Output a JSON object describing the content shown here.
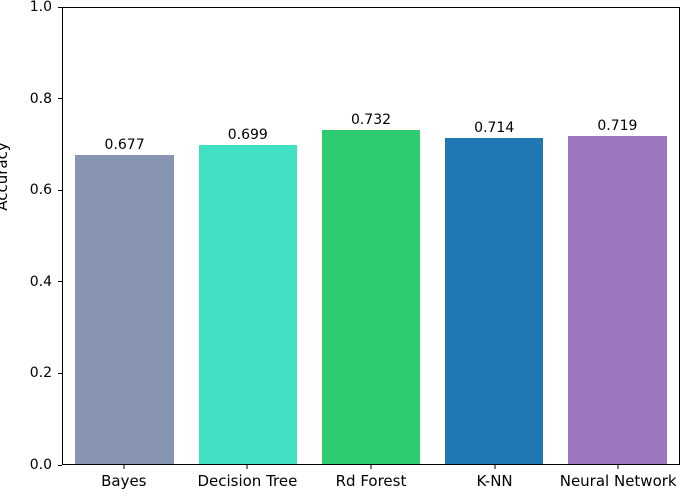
{
  "chart_data": {
    "type": "bar",
    "title": "",
    "xlabel": "",
    "ylabel": "Accuracy",
    "categories": [
      "Bayes",
      "Decision Tree",
      "Rd Forest",
      "K-NN",
      "Neural Network"
    ],
    "values": [
      0.677,
      0.699,
      0.732,
      0.714,
      0.719
    ],
    "value_labels": [
      "0.677",
      "0.699",
      "0.732",
      "0.714",
      "0.719"
    ],
    "bar_colors": [
      "#8794b3",
      "#42e0c3",
      "#2ecc71",
      "#1f77b4",
      "#9d77bd"
    ],
    "ylim": [
      0.0,
      1.0
    ],
    "yticks": [
      0.0,
      0.2,
      0.4,
      0.6,
      0.8,
      1.0
    ],
    "ytick_labels": [
      "0.0",
      "0.2",
      "0.4",
      "0.6",
      "0.8",
      "1.0"
    ],
    "grid": false,
    "legend": false,
    "bar_width_fraction": 0.8,
    "spine_color": "#000000",
    "background_color": "#ffffff"
  }
}
